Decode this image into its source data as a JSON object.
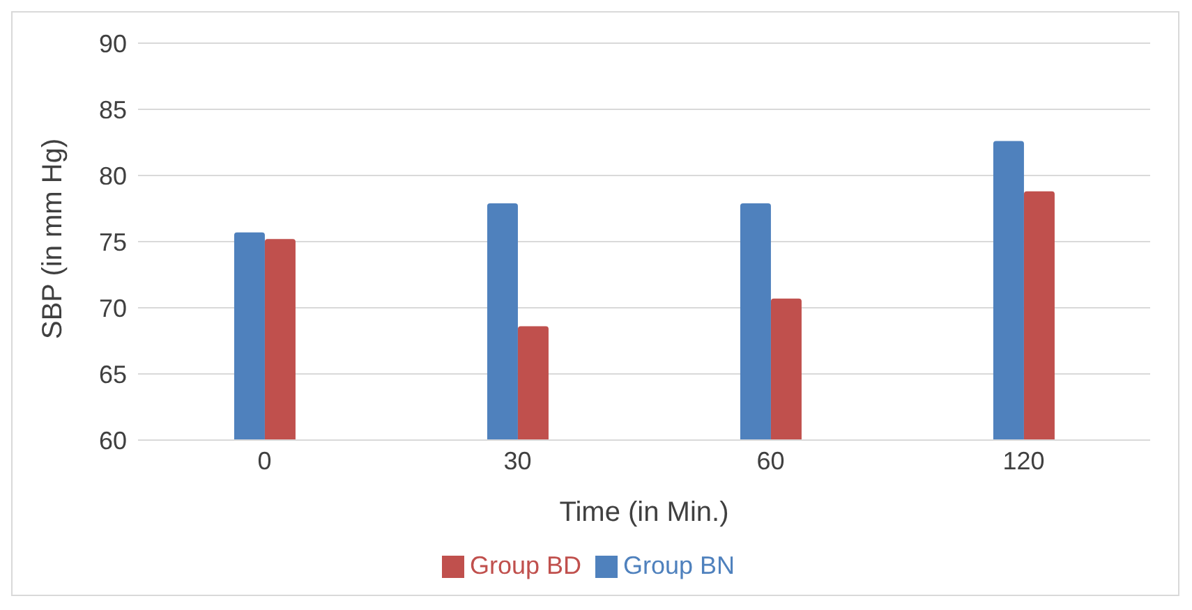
{
  "chart_data": {
    "type": "bar",
    "xlabel": "Time (in Min.)",
    "ylabel": "SBP (in mm Hg)",
    "categories": [
      "0",
      "30",
      "60",
      "120"
    ],
    "series": [
      {
        "name": "Group BN",
        "color": "#4f81bd",
        "values": [
          75.7,
          77.9,
          77.9,
          82.6
        ]
      },
      {
        "name": "Group BD",
        "color": "#c0504d",
        "values": [
          75.2,
          68.6,
          70.7,
          78.8
        ]
      }
    ],
    "ylim": [
      60,
      90
    ],
    "yticks": [
      60,
      65,
      70,
      75,
      80,
      85,
      90
    ],
    "grid": "y",
    "legend": "bottom"
  }
}
